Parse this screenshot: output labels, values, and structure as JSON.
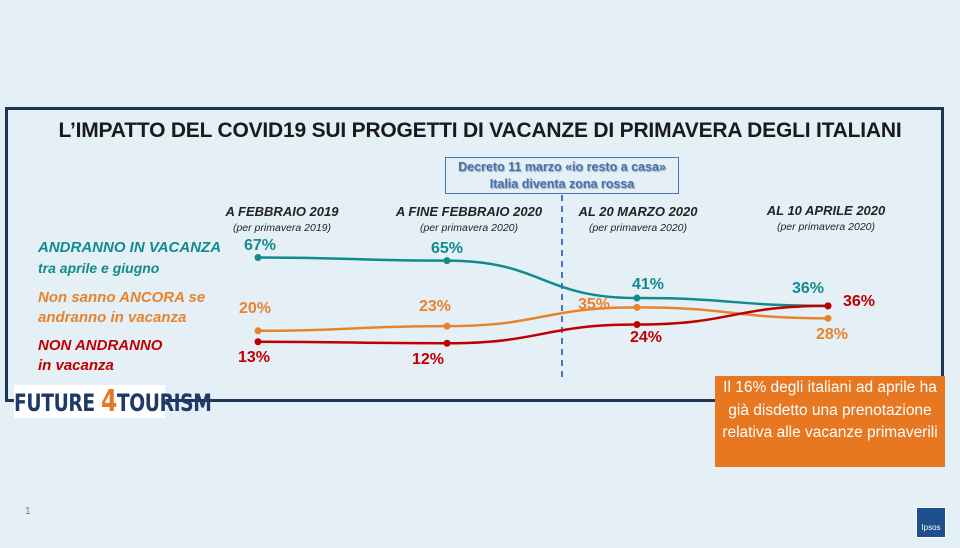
{
  "title": "L’IMPATTO DEL COVID19 SUI PROGETTI DI VACANZE DI PRIMAVERA DEGLI ITALIANI",
  "annotation": {
    "line1": "Decreto 11 marzo «io resto a casa»",
    "line2": "Italia diventa zona rossa"
  },
  "note": "Il 16% degli italiani ad aprile ha già disdetto una prenotazione relativa alle vacanze primaverili",
  "logo": {
    "text_a": "FUTURE ",
    "text_b": "4",
    "text_c": "TOURISM"
  },
  "ipsos_logo": "Ipsos",
  "page_number": "1",
  "colors": {
    "teal": "#138a8e",
    "orange": "#e8832d",
    "red": "#c00000",
    "frame": "#1f3557"
  },
  "chart_data": {
    "type": "line",
    "title": "L’IMPATTO DEL COVID19 SUI PROGETTI DI VACANZE DI PRIMAVERA DEGLI ITALIANI",
    "categories": [
      {
        "label": "A FEBBRAIO 2019",
        "sub": "(per primavera 2019)"
      },
      {
        "label": "A FINE FEBBRAIO 2020",
        "sub": "(per primavera 2020)"
      },
      {
        "label": "AL 20 MARZO 2020",
        "sub": "(per primavera 2020)"
      },
      {
        "label": "AL 10 APRILE 2020",
        "sub": "(per primavera 2020)"
      }
    ],
    "series": [
      {
        "name_1": "ANDRANNO IN VACANZA",
        "name_2": "tra aprile e giugno",
        "color": "#138a8e",
        "values": [
          67,
          65,
          41,
          36
        ],
        "labels": [
          "67%",
          "65%",
          "41%",
          "36%"
        ]
      },
      {
        "name_1": "Non sanno ANCORA se",
        "name_2": "andranno in vacanza",
        "color": "#e8832d",
        "values": [
          20,
          23,
          35,
          28
        ],
        "labels": [
          "20%",
          "23%",
          "35%",
          "28%"
        ]
      },
      {
        "name_1": "NON ANDRANNO",
        "name_2": "in vacanza",
        "color": "#c00000",
        "values": [
          13,
          12,
          24,
          36
        ],
        "labels": [
          "13%",
          "12%",
          "24%",
          "36%"
        ]
      }
    ],
    "ylim": [
      0,
      100
    ],
    "units": "%"
  }
}
